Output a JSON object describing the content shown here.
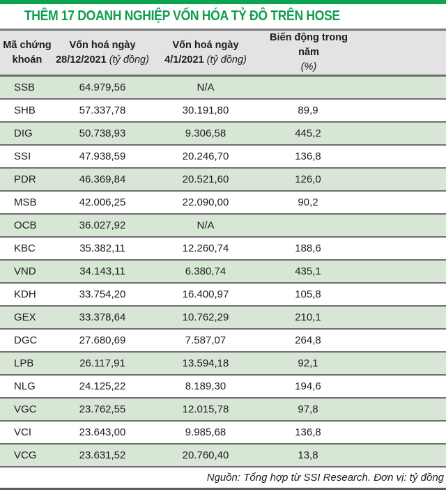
{
  "title": "THÊM 17 DOANH NGHIỆP VỐN HÓA TỶ ĐÔ TRÊN HOSE",
  "colors": {
    "accent_green": "#0f9d4e",
    "top_bar_green": "#0ca351",
    "row_stripe_green": "#d8e7d5",
    "header_gray": "#e3e3e3",
    "separator_gray": "#6f6f6f"
  },
  "header": {
    "col1_line1": "Mã chứng",
    "col1_line2": "khoán",
    "col2_line1": "Vốn hoá ngày",
    "col2_line2_bold": "28/12/2021",
    "col2_line2_note": "(tỷ đồng)",
    "col3_line1": "Vốn hoá ngày",
    "col3_line2_bold": "4/1/2021",
    "col3_line2_note": "(tỷ đồng)",
    "col4_line1": "Biến động trong năm",
    "col4_line2_note": "(%)"
  },
  "footer_note": "Nguồn: Tổng hợp từ SSI Research. Đơn vị: tỷ đồng",
  "chart_data": {
    "type": "table",
    "title": "THÊM 17 DOANH NGHIỆP VỐN HÓA TỶ ĐÔ TRÊN HOSE",
    "columns": [
      "Mã chứng khoán",
      "Vốn hoá ngày 28/12/2021 (tỷ đồng)",
      "Vốn hoá ngày 4/1/2021 (tỷ đồng)",
      "Biến động trong năm (%)"
    ],
    "rows": [
      {
        "code": "SSB",
        "cap_dec_2021": "64.979,56",
        "cap_jan_2021": "N/A",
        "change_pct": ""
      },
      {
        "code": "SHB",
        "cap_dec_2021": "57.337,78",
        "cap_jan_2021": "30.191,80",
        "change_pct": "89,9"
      },
      {
        "code": "DIG",
        "cap_dec_2021": "50.738,93",
        "cap_jan_2021": "9.306,58",
        "change_pct": "445,2"
      },
      {
        "code": "SSI",
        "cap_dec_2021": "47.938,59",
        "cap_jan_2021": "20.246,70",
        "change_pct": "136,8"
      },
      {
        "code": "PDR",
        "cap_dec_2021": "46.369,84",
        "cap_jan_2021": "20.521,60",
        "change_pct": "126,0"
      },
      {
        "code": "MSB",
        "cap_dec_2021": "42.006,25",
        "cap_jan_2021": "22.090,00",
        "change_pct": "90,2"
      },
      {
        "code": "OCB",
        "cap_dec_2021": "36.027,92",
        "cap_jan_2021": "N/A",
        "change_pct": ""
      },
      {
        "code": "KBC",
        "cap_dec_2021": "35.382,11",
        "cap_jan_2021": "12.260,74",
        "change_pct": "188,6"
      },
      {
        "code": "VND",
        "cap_dec_2021": "34.143,11",
        "cap_jan_2021": "6.380,74",
        "change_pct": "435,1"
      },
      {
        "code": "KDH",
        "cap_dec_2021": "33.754,20",
        "cap_jan_2021": "16.400,97",
        "change_pct": "105,8"
      },
      {
        "code": "GEX",
        "cap_dec_2021": "33.378,64",
        "cap_jan_2021": "10.762,29",
        "change_pct": "210,1"
      },
      {
        "code": "DGC",
        "cap_dec_2021": "27.680,69",
        "cap_jan_2021": "7.587,07",
        "change_pct": "264,8"
      },
      {
        "code": "LPB",
        "cap_dec_2021": "26.117,91",
        "cap_jan_2021": "13.594,18",
        "change_pct": "92,1"
      },
      {
        "code": "NLG",
        "cap_dec_2021": "24.125,22",
        "cap_jan_2021": "8.189,30",
        "change_pct": "194,6"
      },
      {
        "code": "VGC",
        "cap_dec_2021": "23.762,55",
        "cap_jan_2021": "12.015,78",
        "change_pct": "97,8"
      },
      {
        "code": "VCI",
        "cap_dec_2021": "23.643,00",
        "cap_jan_2021": "9.985,68",
        "change_pct": "136,8"
      },
      {
        "code": "VCG",
        "cap_dec_2021": "23.631,52",
        "cap_jan_2021": "20.760,40",
        "change_pct": "13,8"
      }
    ],
    "source_note": "Nguồn: Tổng hợp từ SSI Research. Đơn vị: tỷ đồng",
    "layout": {
      "grid": "horizontal-separators-only",
      "stripe_pattern": "odd-rows-green"
    }
  }
}
